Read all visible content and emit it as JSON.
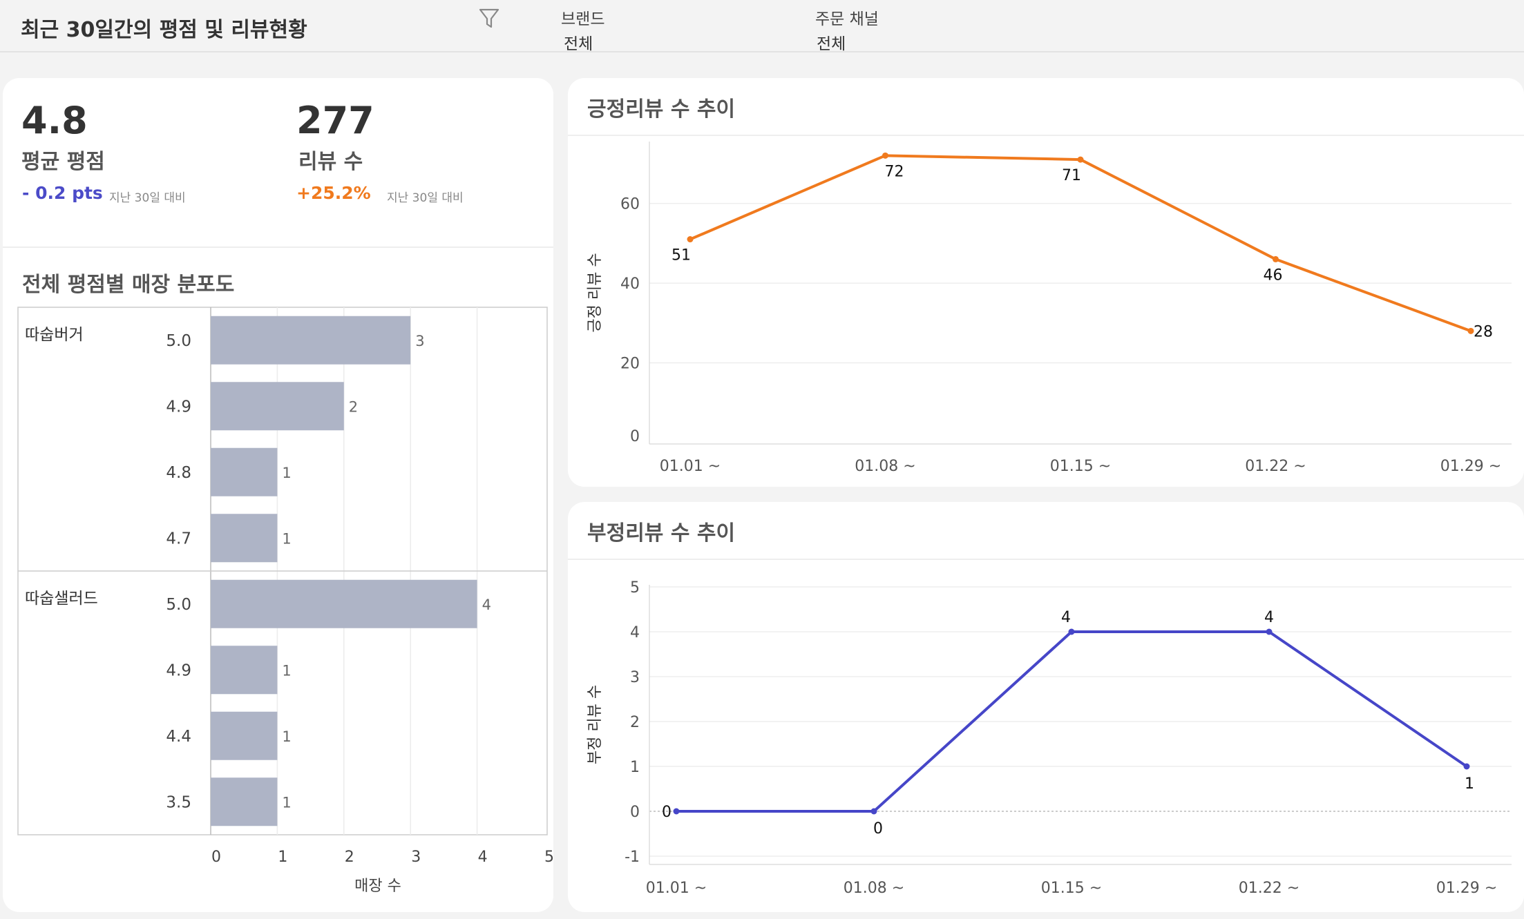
{
  "header": {
    "title": "최근 30일간의 평점 및 리뷰현황",
    "filter_icon": "funnel-filter-icon",
    "filters": [
      {
        "label": "브랜드",
        "value": "전체"
      },
      {
        "label": "주문 채널",
        "value": "전체"
      }
    ]
  },
  "kpis": {
    "rating": {
      "value": "4.8",
      "label": "평균 평점",
      "delta": "- 0.2 pts",
      "note": "지난 30일 대비",
      "delta_color": "#4b4bc8"
    },
    "reviews": {
      "value": "277",
      "label": "리뷰 수",
      "delta": "+25.2%",
      "note": "지난 30일 대비",
      "delta_color": "#f07a1e"
    }
  },
  "colors": {
    "bar": "#aeb4c6",
    "positive_line": "#f07a1e",
    "negative_line": "#4646c8"
  },
  "chart_data": [
    {
      "type": "bar",
      "orientation": "horizontal",
      "title": "전체 평점별 매장 분포도",
      "xlabel": "매장 수",
      "ylabel": "",
      "xlim": [
        0,
        5
      ],
      "x_ticks": [
        "0",
        "1",
        "2",
        "3",
        "4",
        "5"
      ],
      "groups": [
        {
          "name": "따숩버거",
          "categories": [
            "5.0",
            "4.9",
            "4.8",
            "4.7"
          ],
          "values": [
            3,
            2,
            1,
            1
          ]
        },
        {
          "name": "따숩샐러드",
          "categories": [
            "5.0",
            "4.9",
            "4.4",
            "3.5"
          ],
          "values": [
            4,
            1,
            1,
            1
          ]
        }
      ],
      "data_labels": true,
      "grid": true
    },
    {
      "type": "line",
      "title": "긍정리뷰 수 추이",
      "xlabel": "",
      "ylabel": "긍정 리뷰 수",
      "categories": [
        "01.01 ~",
        "01.08 ~",
        "01.15 ~",
        "01.22 ~",
        "01.29 ~"
      ],
      "values": [
        51,
        72,
        71,
        46,
        28
      ],
      "ylim": [
        0,
        75
      ],
      "y_ticks": [
        "0",
        "20",
        "40",
        "60"
      ],
      "data_labels": true,
      "grid": true
    },
    {
      "type": "line",
      "title": "부정리뷰 수 추이",
      "xlabel": "",
      "ylabel": "부정 리뷰 수",
      "categories": [
        "01.01 ~",
        "01.08 ~",
        "01.15 ~",
        "01.22 ~",
        "01.29 ~"
      ],
      "values": [
        0,
        0,
        4,
        4,
        1
      ],
      "ylim": [
        -1,
        5
      ],
      "y_ticks": [
        "-1",
        "0",
        "1",
        "2",
        "3",
        "4",
        "5"
      ],
      "data_labels": true,
      "grid": true
    }
  ]
}
